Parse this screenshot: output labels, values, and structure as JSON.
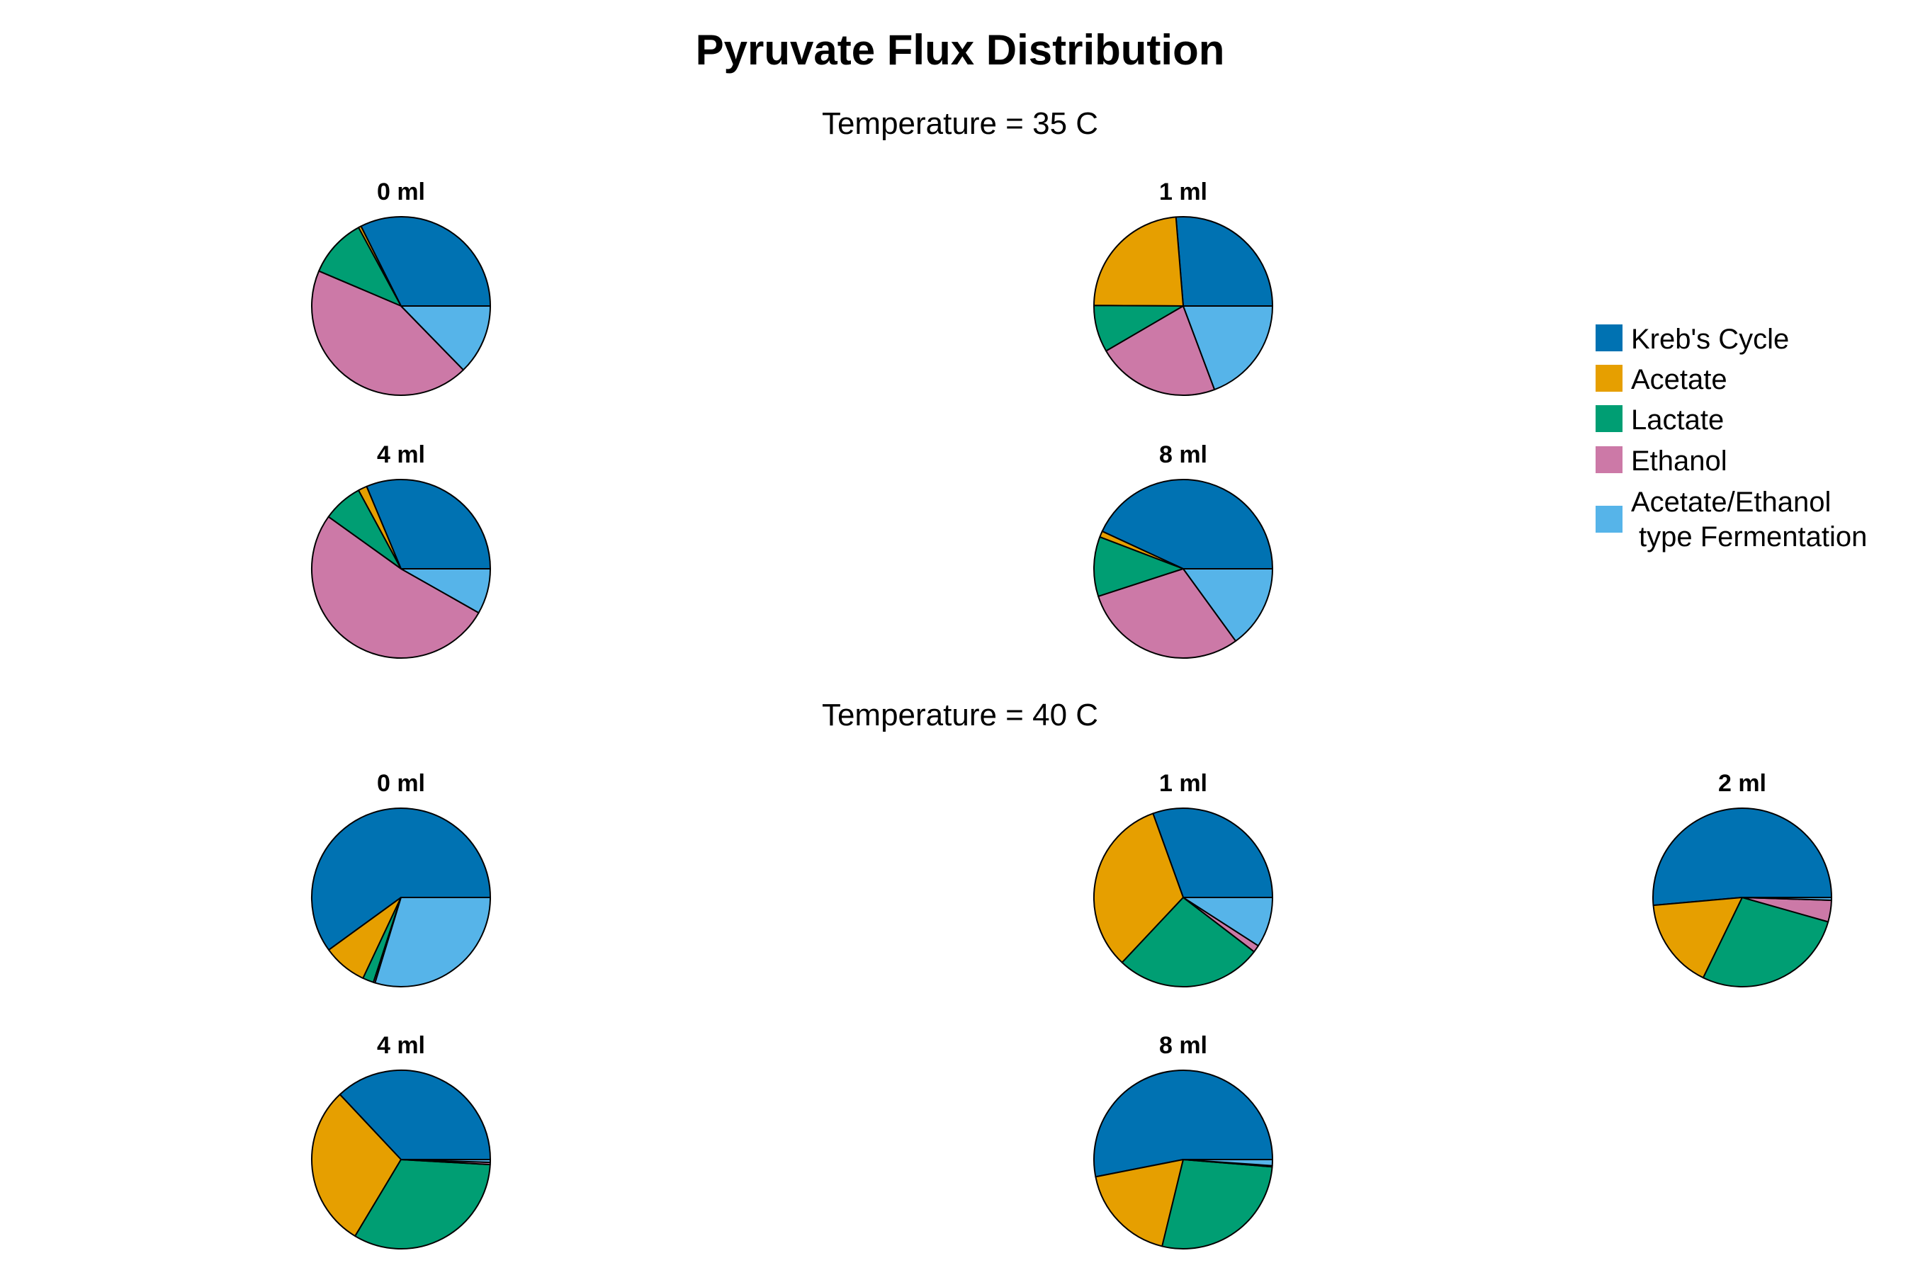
{
  "chart_data": {
    "type": "pie",
    "title": "Pyruvate Flux Distribution",
    "legend_position": "right",
    "legend": [
      {
        "label": "Kreb's Cycle",
        "color": "#0072B2"
      },
      {
        "label": "Acetate",
        "color": "#E69F00"
      },
      {
        "label": "Lactate",
        "color": "#009E73"
      },
      {
        "label": "Ethanol",
        "color": "#CC79A7"
      },
      {
        "label": "Acetate/Ethanol",
        "label2": "type Fermentation",
        "color": "#56B4E9"
      }
    ],
    "groups": [
      {
        "title": "Temperature = 35 C",
        "pies": [
          {
            "label": "0 ml",
            "values": [
              0.324,
              0.005,
              0.107,
              0.437,
              0.127
            ]
          },
          {
            "label": "1 ml",
            "values": [
              0.263,
              0.236,
              0.085,
              0.223,
              0.193
            ]
          },
          {
            "label": "4 ml",
            "values": [
              0.313,
              0.016,
              0.072,
              0.517,
              0.082
            ]
          },
          {
            "label": "8 ml",
            "values": [
              0.431,
              0.011,
              0.108,
              0.3,
              0.15
            ]
          }
        ]
      },
      {
        "title": "Temperature = 40 C",
        "pies": [
          {
            "label": "0 ml",
            "values": [
              0.6,
              0.08,
              0.02,
              0.003,
              0.297
            ]
          },
          {
            "label": "1 ml",
            "values": [
              0.305,
              0.325,
              0.266,
              0.013,
              0.091
            ]
          },
          {
            "label": "2 ml",
            "values": [
              0.514,
              0.164,
              0.278,
              0.039,
              0.005
            ]
          },
          {
            "label": "4 ml",
            "values": [
              0.37,
              0.294,
              0.327,
              0.004,
              0.005
            ]
          },
          {
            "label": "8 ml",
            "values": [
              0.531,
              0.181,
              0.275,
              0.002,
              0.011
            ]
          }
        ]
      }
    ]
  }
}
